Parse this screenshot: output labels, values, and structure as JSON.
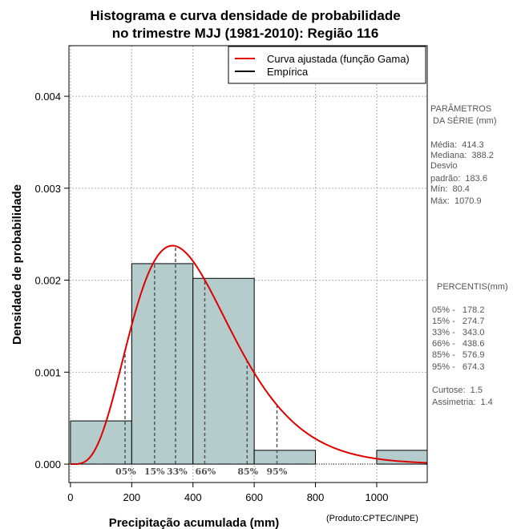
{
  "colors": {
    "bar_fill": "#b4cccc",
    "curve": "#e00000",
    "grid": "#b0b0b0",
    "percentile_line": "#555555",
    "side_text": "#555555"
  },
  "chart_data": {
    "type": "histogram",
    "title_lines": [
      "Histograma e curva densidade de probabilidade",
      "no trimestre MJJ (1981-2010): Região 116"
    ],
    "xlabel": "Precipitação acumulada (mm)",
    "ylabel": "Densidade de probabilidade",
    "credit": "(Produto:CPTEC/INPE)",
    "xlim": [
      -5,
      1165
    ],
    "ylim": [
      -0.0002,
      0.00455
    ],
    "x_ticks": [
      0,
      200,
      400,
      600,
      800,
      1000
    ],
    "y_ticks": [
      0.0,
      0.001,
      0.002,
      0.003,
      0.004
    ],
    "y_tick_labels": [
      "0.000",
      "0.001",
      "0.002",
      "0.003",
      "0.004"
    ],
    "grid": true,
    "bins": [
      {
        "from": 0,
        "to": 200,
        "density": 0.00047
      },
      {
        "from": 200,
        "to": 400,
        "density": 0.00218
      },
      {
        "from": 400,
        "to": 600,
        "density": 0.00202
      },
      {
        "from": 600,
        "to": 800,
        "density": 0.00015
      },
      {
        "from": 800,
        "to": 1000,
        "density": 0.0
      },
      {
        "from": 1000,
        "to": 1165,
        "density": 0.00015
      }
    ],
    "gamma_fit": {
      "mean": 414.3,
      "sd": 183.6,
      "x_from": 0,
      "x_to": 1165
    },
    "percentiles": [
      {
        "label": "05%",
        "value": 178.2
      },
      {
        "label": "15%",
        "value": 274.7
      },
      {
        "label": "33%",
        "value": 343.0
      },
      {
        "label": "66%",
        "value": 438.6
      },
      {
        "label": "85%",
        "value": 576.9
      },
      {
        "label": "95%",
        "value": 674.3
      }
    ],
    "legend": {
      "position": "top-right",
      "entries": [
        {
          "label": "Curva ajustada (função Gama)",
          "color": "#e00000"
        },
        {
          "label": "Empírica",
          "color": "#000000"
        }
      ]
    }
  },
  "side_panel": {
    "params_title": [
      "PARÂMETROS",
      " DA SÉRIE (mm)"
    ],
    "params_lines": [
      "Média:  414.3",
      "Mediana:  388.2",
      "Desvio",
      "padrão:  183.6",
      "Mín:  80.4",
      "Máx:  1070.9"
    ],
    "percentis_title": "PERCENTIS(mm)",
    "percentis_lines": [
      "05% -   178.2",
      "15% -   274.7",
      "33% -   343.0",
      "66% -   438.6",
      "85% -   576.9",
      "95% -   674.3"
    ],
    "shape_lines": [
      "Curtose:  1.5",
      "Assimetria:  1.4"
    ]
  }
}
